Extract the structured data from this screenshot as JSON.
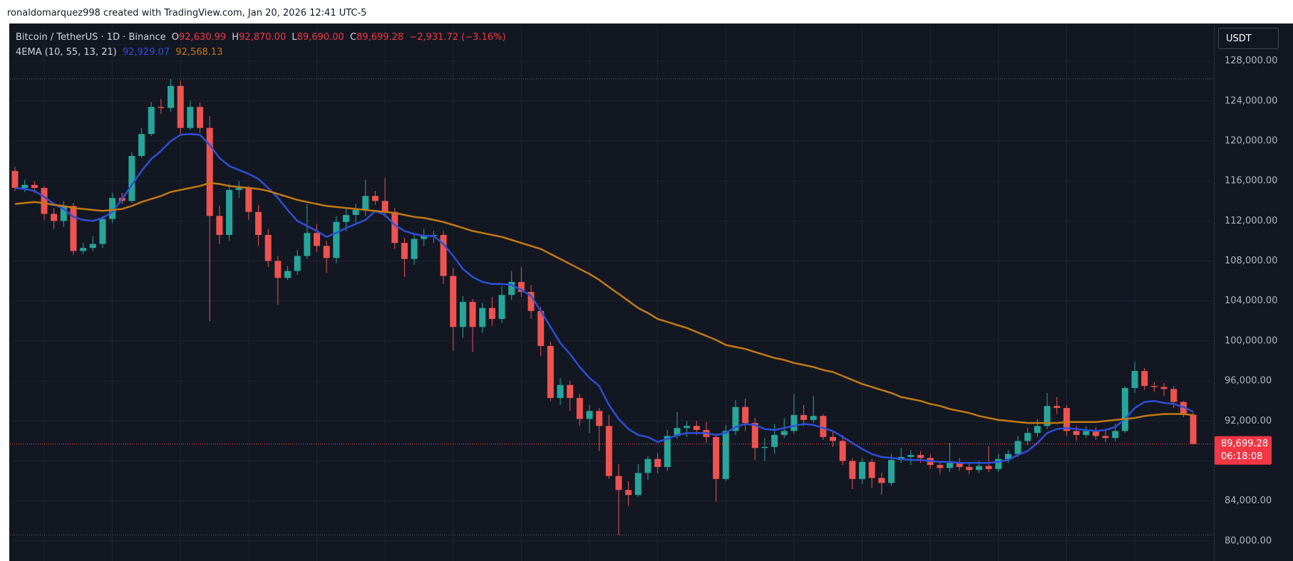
{
  "header": {
    "text": "ronaldomarquez998 created with TradingView.com, Jan 20, 2026 12:41 UTC-5"
  },
  "chart_data": {
    "type": "candlestick",
    "symbol": "Bitcoin / TetherUS · 1D · Binance",
    "legend": {
      "open_key": "O",
      "open": "92,630.99",
      "high_key": "H",
      "high": "92,870.00",
      "low_key": "L",
      "low": "89,690.00",
      "close_key": "C",
      "close": "89,699.28",
      "change": "−2,931.72 (−3.16%)"
    },
    "indicator": "4EMA (10, 55, 13, 21)",
    "currency": "USDT",
    "up_color": "#26a69a",
    "down_color": "#ef5350",
    "open": [
      117000,
      115300,
      115600,
      115300,
      112700,
      112000,
      113500,
      109000,
      109300,
      109700,
      112200,
      114300,
      114000,
      118500,
      120700,
      123400,
      123300,
      125500,
      121300,
      123400,
      121300,
      112500,
      110600,
      115100,
      115300,
      112900,
      110600,
      108000,
      106300,
      107000,
      108500,
      110800,
      109500,
      108300,
      111900,
      112600,
      113100,
      114500,
      114000,
      112900,
      109800,
      108200,
      110200,
      110500,
      110600,
      106500,
      101400,
      103900,
      101400,
      103300,
      102200,
      104600,
      105900,
      104900,
      103000,
      99500,
      94300,
      95600,
      94300,
      92200,
      93000,
      91500,
      86500,
      85100,
      84600,
      86800,
      88200,
      87400,
      90500,
      91300,
      91500,
      91100,
      90400,
      86200,
      91000,
      93400,
      91800,
      89300,
      89400,
      90600,
      91000,
      92600,
      92100,
      92500,
      90400,
      90000,
      88000,
      86200,
      87900,
      86300,
      85800,
      88100,
      88400,
      88600,
      88300,
      87600,
      87300,
      87800,
      87400,
      87100,
      87500,
      87200,
      88200,
      88700,
      90000,
      90800,
      91500,
      93500,
      93300,
      91000,
      90600,
      91000,
      90500,
      90300,
      91000,
      95300,
      97000,
      95500,
      95400,
      95200,
      93900,
      92630.99
    ],
    "high": [
      117400,
      116100,
      116000,
      115500,
      113300,
      114000,
      113800,
      109800,
      110500,
      112500,
      114800,
      114800,
      118900,
      121300,
      123900,
      124200,
      126200,
      126000,
      124000,
      123800,
      122500,
      113500,
      115700,
      116000,
      115500,
      113600,
      111200,
      108500,
      107500,
      109100,
      113700,
      111700,
      110000,
      112500,
      113300,
      113700,
      116100,
      115000,
      116300,
      113300,
      110300,
      110700,
      111200,
      111000,
      111000,
      107300,
      104500,
      104200,
      103800,
      104400,
      105500,
      107000,
      107400,
      105600,
      103400,
      99900,
      96300,
      96000,
      94700,
      93600,
      93300,
      92600,
      87700,
      86000,
      87700,
      88500,
      88800,
      91100,
      92900,
      92000,
      92000,
      91900,
      90600,
      91600,
      94100,
      94200,
      92300,
      90300,
      91700,
      92300,
      94700,
      93600,
      94500,
      92700,
      90900,
      90600,
      88300,
      88300,
      88200,
      86800,
      88700,
      89300,
      89100,
      89000,
      88700,
      88000,
      89800,
      88300,
      87800,
      88000,
      89500,
      88700,
      89100,
      90500,
      91300,
      92200,
      94800,
      94400,
      93600,
      91500,
      91500,
      91400,
      91100,
      91700,
      95500,
      97900,
      97300,
      95900,
      95800,
      95500,
      94000,
      92870
    ],
    "low": [
      115000,
      114900,
      114800,
      112100,
      111200,
      111400,
      108600,
      108700,
      109000,
      109300,
      111800,
      113700,
      113800,
      118300,
      120500,
      122700,
      122900,
      120600,
      121100,
      120800,
      102000,
      109700,
      110000,
      114300,
      112100,
      109500,
      107400,
      103600,
      106100,
      106600,
      108200,
      108900,
      106800,
      107800,
      111000,
      111800,
      112500,
      113600,
      112400,
      109200,
      106400,
      107600,
      109500,
      109800,
      105700,
      99000,
      100300,
      98900,
      100800,
      101500,
      101800,
      104100,
      104400,
      102200,
      98500,
      94000,
      93600,
      93000,
      91500,
      90800,
      89000,
      86200,
      80600,
      83500,
      84400,
      86100,
      86800,
      87000,
      90200,
      90400,
      90600,
      89800,
      83900,
      86000,
      90600,
      91000,
      88100,
      88000,
      88700,
      90300,
      90700,
      91500,
      91800,
      90100,
      89400,
      87600,
      85200,
      85700,
      85300,
      84600,
      85500,
      87800,
      87600,
      87800,
      87200,
      86700,
      86900,
      87000,
      86700,
      86800,
      86900,
      86900,
      87800,
      88400,
      89600,
      90400,
      91200,
      92700,
      90500,
      90000,
      90300,
      90100,
      89900,
      90000,
      90800,
      94800,
      95100,
      94900,
      94500,
      93300,
      92400,
      89690
    ],
    "close": [
      115300,
      115600,
      115300,
      112700,
      112000,
      113500,
      109000,
      109300,
      109700,
      112200,
      114300,
      114000,
      118500,
      120700,
      123400,
      123300,
      125500,
      121300,
      123400,
      121300,
      112500,
      110600,
      115100,
      115300,
      112900,
      110600,
      108000,
      106300,
      107000,
      108500,
      110800,
      109500,
      108300,
      111900,
      112600,
      113100,
      114500,
      114000,
      112900,
      109800,
      108200,
      110200,
      110500,
      110600,
      106500,
      101400,
      103900,
      101400,
      103300,
      102200,
      104600,
      105900,
      104900,
      103000,
      99500,
      94300,
      95600,
      94300,
      92200,
      93000,
      91500,
      86500,
      85100,
      84600,
      86800,
      88200,
      87400,
      90500,
      91300,
      91500,
      91100,
      90400,
      86200,
      91000,
      93400,
      91800,
      89300,
      89400,
      90600,
      91000,
      92600,
      92100,
      92500,
      90400,
      90000,
      88000,
      86200,
      87900,
      86300,
      85800,
      88100,
      88400,
      88600,
      88300,
      87600,
      87300,
      87800,
      87400,
      87100,
      87500,
      87200,
      88200,
      88700,
      90000,
      90800,
      91500,
      93500,
      93300,
      91000,
      90600,
      91000,
      90500,
      90300,
      91000,
      95300,
      97000,
      95500,
      95400,
      95200,
      93900,
      92600,
      89699.28
    ],
    "series": [
      {
        "color": "#2e4fd6",
        "last_value_label": "92,929.07",
        "values": [
          115300,
          115200,
          115000,
          114400,
          113700,
          113200,
          112400,
          112100,
          112000,
          112300,
          112900,
          114200,
          115600,
          117000,
          118200,
          119000,
          120000,
          120600,
          120700,
          120600,
          119600,
          118300,
          117500,
          117100,
          116700,
          116200,
          115300,
          114300,
          113100,
          112000,
          111500,
          111000,
          110400,
          110800,
          111300,
          111700,
          112100,
          113000,
          112600,
          111600,
          111000,
          110700,
          110500,
          110500,
          109700,
          108500,
          107200,
          106400,
          105900,
          105700,
          105700,
          105600,
          105100,
          104500,
          103000,
          101400,
          99800,
          98700,
          97400,
          96300,
          95500,
          93600,
          92200,
          91200,
          90600,
          90400,
          89900,
          90200,
          90600,
          90800,
          90800,
          90800,
          90600,
          90800,
          91400,
          91700,
          91600,
          91200,
          91100,
          91300,
          91500,
          91700,
          91600,
          91300,
          91000,
          90400,
          89800,
          89200,
          88700,
          88400,
          88300,
          88200,
          88100,
          88100,
          88000,
          87900,
          87900,
          87800,
          87800,
          87800,
          87800,
          87900,
          88100,
          88600,
          89000,
          89800,
          90800,
          91200,
          91300,
          91200,
          91100,
          91000,
          91100,
          91400,
          92200,
          93300,
          93900,
          94000,
          93800,
          93700,
          93400,
          92929.07
        ]
      },
      {
        "color": "#c27a14",
        "last_value_label": "92,568.13",
        "values": [
          113700,
          113800,
          113900,
          113800,
          113600,
          113500,
          113300,
          113200,
          113100,
          113000,
          113100,
          113200,
          113500,
          113900,
          114200,
          114500,
          114900,
          115100,
          115300,
          115500,
          115800,
          115700,
          115500,
          115400,
          115300,
          115200,
          115000,
          114700,
          114400,
          114100,
          113900,
          113700,
          113500,
          113400,
          113300,
          113200,
          113100,
          113000,
          112900,
          112800,
          112600,
          112400,
          112300,
          112100,
          111900,
          111600,
          111300,
          111000,
          110800,
          110600,
          110400,
          110100,
          109800,
          109500,
          109200,
          108700,
          108200,
          107700,
          107200,
          106700,
          106100,
          105400,
          104700,
          104000,
          103300,
          102800,
          102200,
          101900,
          101600,
          101300,
          100900,
          100500,
          100100,
          99600,
          99400,
          99200,
          98900,
          98600,
          98300,
          98100,
          97800,
          97600,
          97400,
          97100,
          96900,
          96500,
          96100,
          95700,
          95400,
          95100,
          94800,
          94400,
          94200,
          94000,
          93700,
          93500,
          93200,
          93000,
          92800,
          92500,
          92300,
          92100,
          92000,
          91900,
          91800,
          91800,
          91800,
          91800,
          91900,
          91900,
          91900,
          91900,
          92000,
          92100,
          92200,
          92300,
          92500,
          92600,
          92700,
          92700,
          92700,
          92568.13
        ]
      }
    ],
    "ylim": [
      78000,
      131600
    ],
    "yticks": [
      {
        "value": 80000,
        "label": "80,000.00"
      },
      {
        "value": 84000,
        "label": "84,000.00"
      },
      {
        "value": 88000,
        "label": "88,000.00"
      },
      {
        "value": 92000,
        "label": "92,000.00"
      },
      {
        "value": 96000,
        "label": "96,000.00"
      },
      {
        "value": 100000,
        "label": "100,000.00"
      },
      {
        "value": 104000,
        "label": "104,000.00"
      },
      {
        "value": 108000,
        "label": "108,000.00"
      },
      {
        "value": 112000,
        "label": "112,000.00"
      },
      {
        "value": 116000,
        "label": "116,000.00"
      },
      {
        "value": 120000,
        "label": "120,000.00"
      },
      {
        "value": 124000,
        "label": "124,000.00"
      },
      {
        "value": 128000,
        "label": "128,000.00"
      }
    ],
    "grid": true,
    "last_price_label": "89,699.28",
    "countdown": "06:18:08"
  }
}
